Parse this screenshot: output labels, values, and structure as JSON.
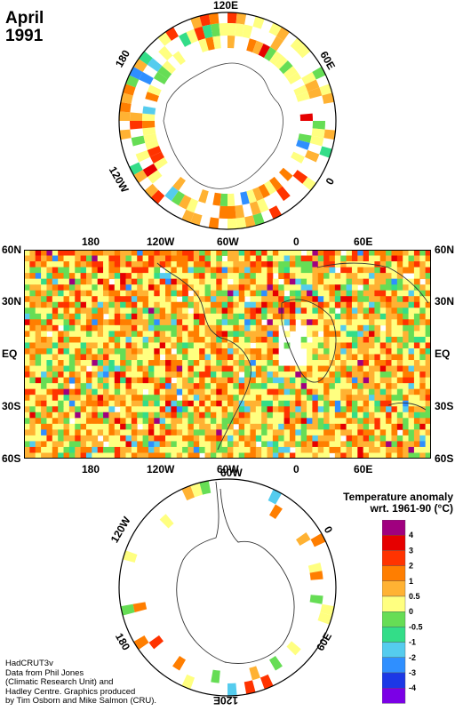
{
  "title": {
    "month": "April",
    "year": "1991"
  },
  "north_polar": {
    "labels": {
      "top": "120E",
      "left": "180",
      "right": "60E",
      "lower_left": "120W",
      "lower_right": "0"
    }
  },
  "main_map": {
    "left_labels": [
      "60N",
      "30N",
      "EQ",
      "30S",
      "60S"
    ],
    "right_labels": [
      "60N",
      "30N",
      "EQ",
      "30S",
      "60S"
    ],
    "top_labels": [
      "180",
      "120W",
      "60W",
      "0",
      "60E"
    ],
    "bottom_labels": [
      "180",
      "120W",
      "60W",
      "0",
      "60E"
    ]
  },
  "south_polar": {
    "labels": {
      "top": "60W",
      "left": "120W",
      "right": "0",
      "lower_left": "180",
      "lower_right": "60E",
      "bottom": "120E"
    }
  },
  "legend": {
    "title_line1": "Temperature anomaly",
    "title_line2": "wrt. 1961-90  (°C)",
    "ticks": [
      "4",
      "3",
      "2",
      "1",
      "0.5",
      "0",
      "-0.5",
      "-1",
      "-2",
      "-3",
      "-4"
    ],
    "colors": [
      "#a0007f",
      "#e60000",
      "#ff3300",
      "#ff7e00",
      "#ffb233",
      "#ffff80",
      "#66dd55",
      "#33dd88",
      "#55ccee",
      "#2f8fff",
      "#1c38e6",
      "#7b00e6"
    ]
  },
  "credits": [
    "HadCRUT3v",
    "Data from Phil Jones",
    "(Climatic Research Unit) and",
    "Hadley Centre.  Graphics produced",
    "by Tim Osborn and Mike Salmon (CRU)."
  ]
}
